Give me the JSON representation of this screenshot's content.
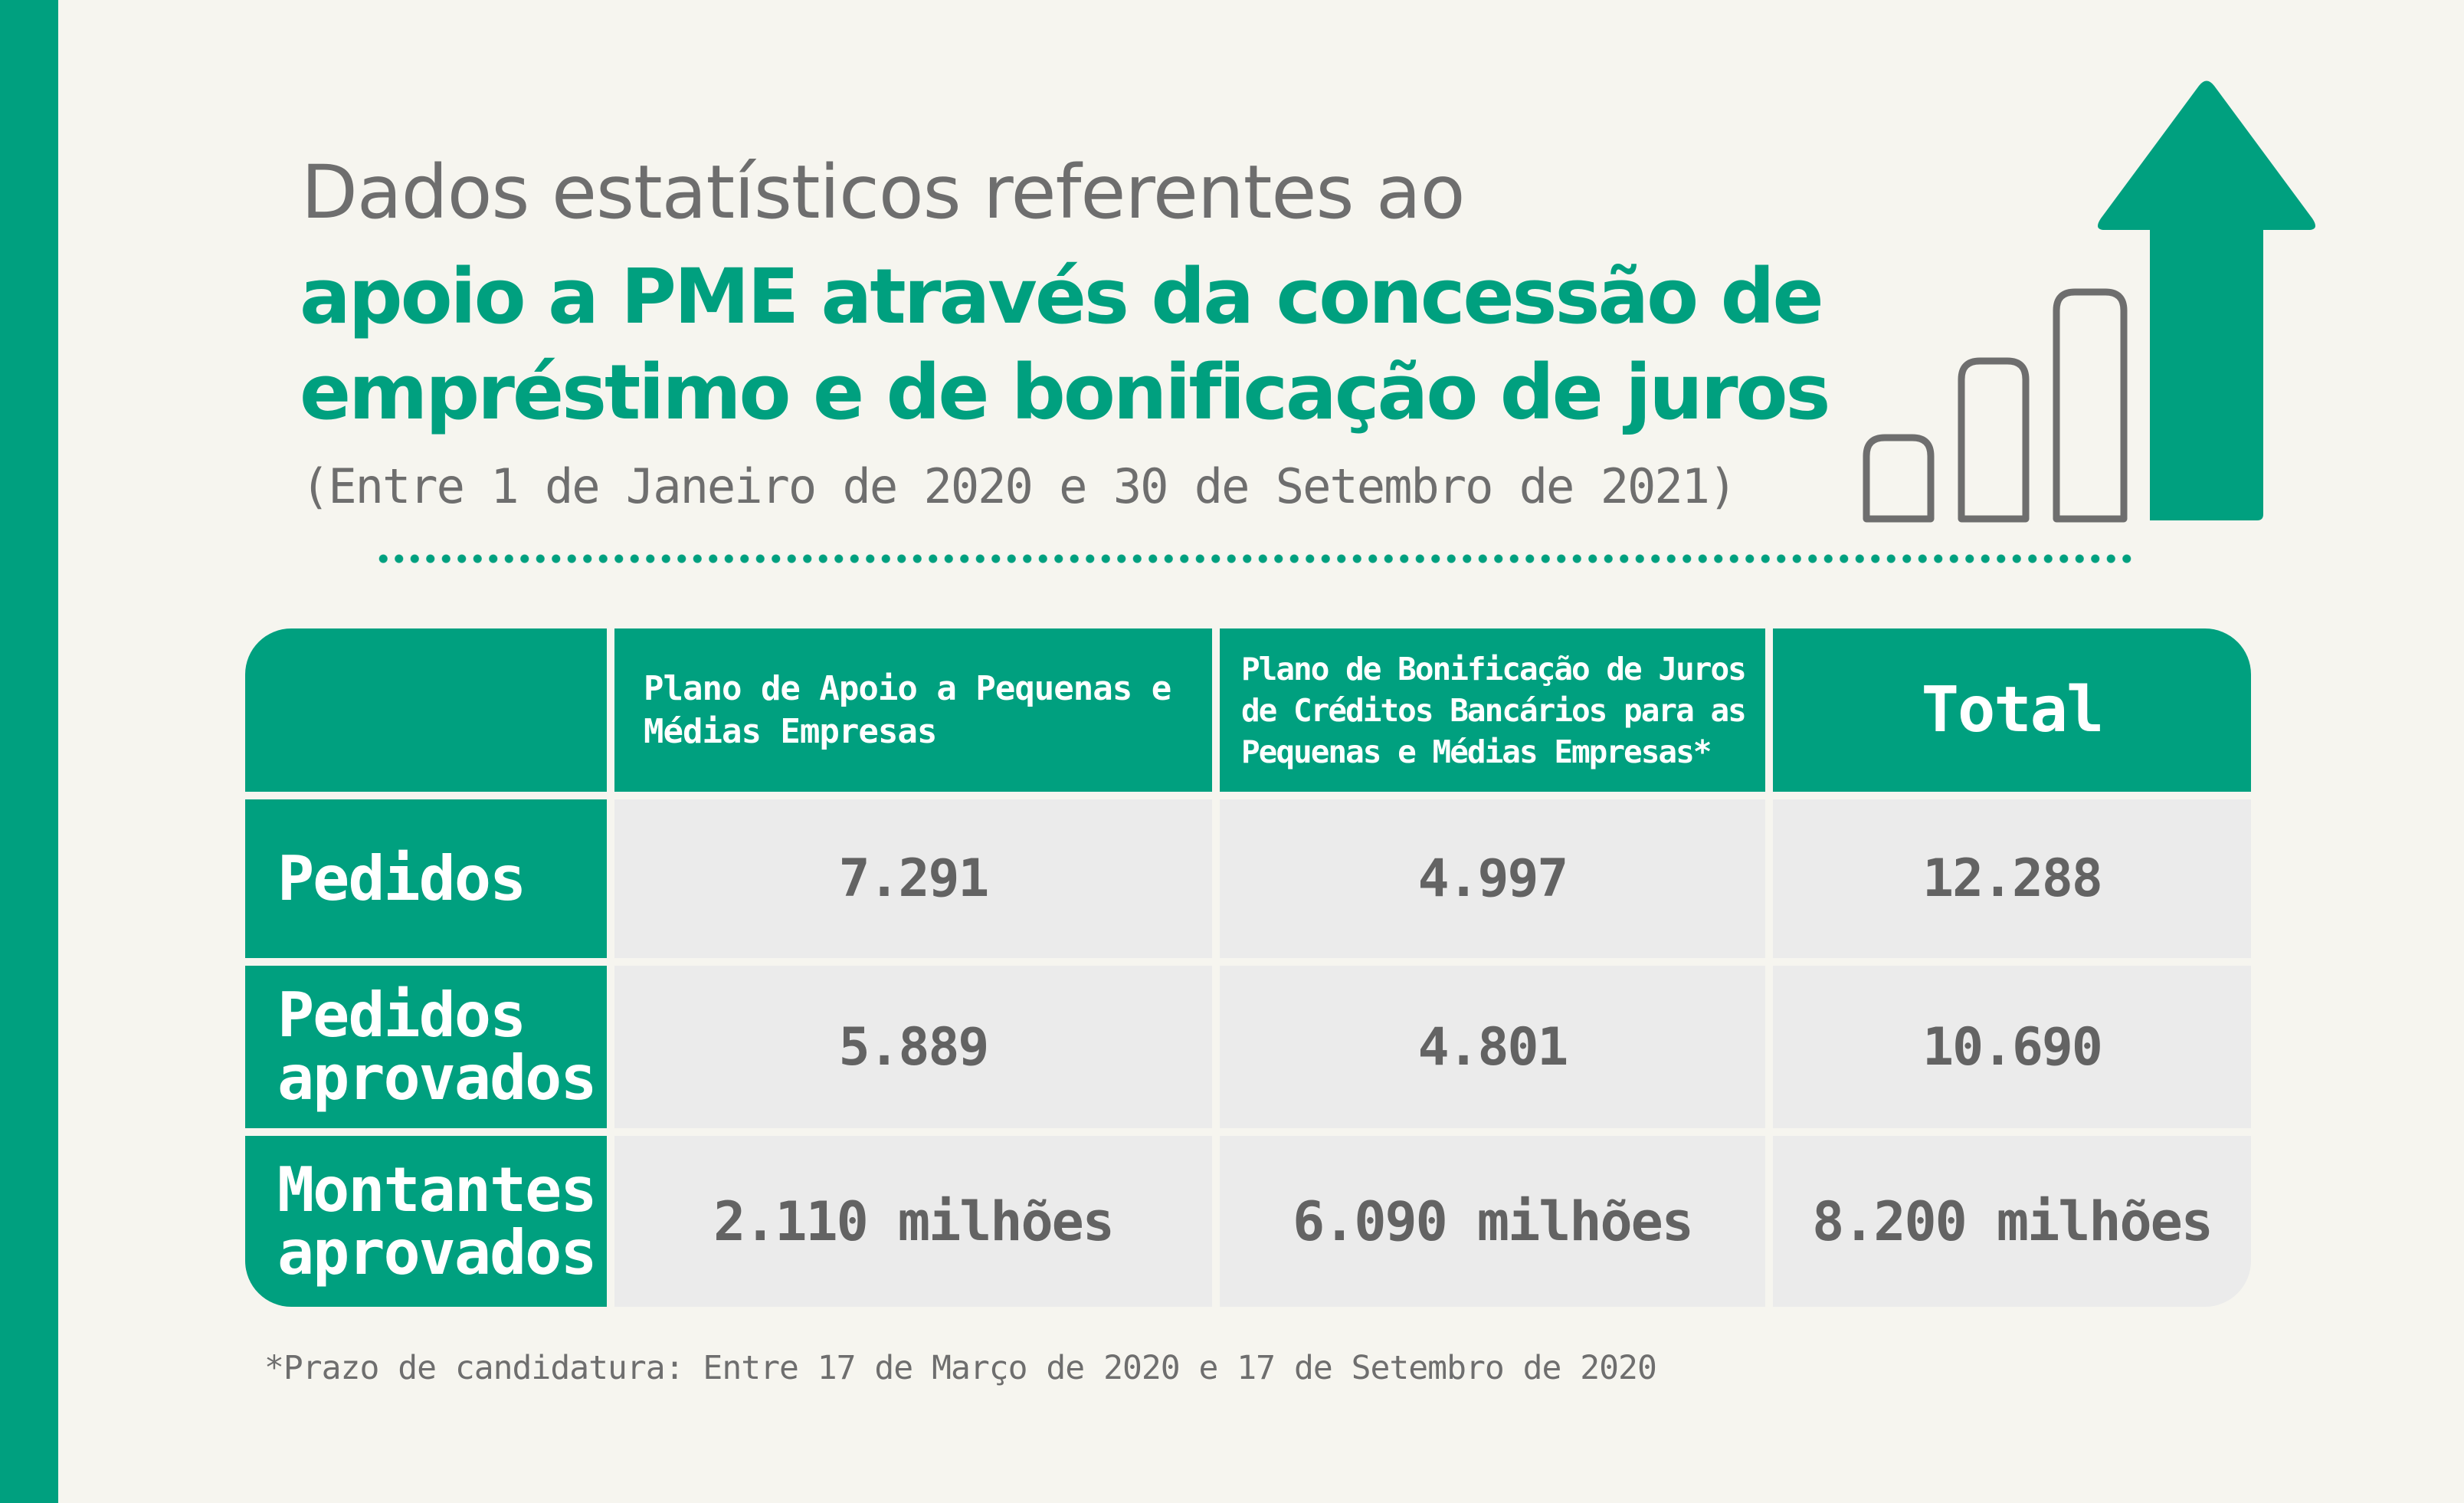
{
  "title": {
    "line1": "Dados estatísticos referentes ao",
    "line2": "apoio a PME através da concessão de",
    "line3": "empréstimo e de bonificação de juros",
    "subtitle": "(Entre 1 de Janeiro de 2020 e 30 de Setembro de 2021)"
  },
  "table": {
    "headers": {
      "col1": "Plano de Apoio a Pequenas e Médias Empresas",
      "col2": "Plano de Bonificação de Juros de Créditos Bancários para as Pequenas e Médias Empresas*",
      "col3": "Total"
    },
    "rows": [
      {
        "label": "Pedidos",
        "col1": "7.291",
        "col2": "4.997",
        "col3": "12.288"
      },
      {
        "label": "Pedidos aprovados",
        "col1": "5.889",
        "col2": "4.801",
        "col3": "10.690"
      },
      {
        "label": "Montantes aprovados",
        "col1": "2.110 milhões",
        "col2": "6.090 milhões",
        "col3": "8.200 milhões"
      }
    ]
  },
  "footnote": "*Prazo de candidatura: Entre 17 de Março de 2020 e 17 de Setembro de 2020",
  "colors": {
    "accent": "#00a07f",
    "background": "#f6f5ef",
    "cell": "#ebebeb",
    "text_gray": "#6e6e6e"
  },
  "icons": {
    "growth": "growth-bars-arrow-icon"
  }
}
